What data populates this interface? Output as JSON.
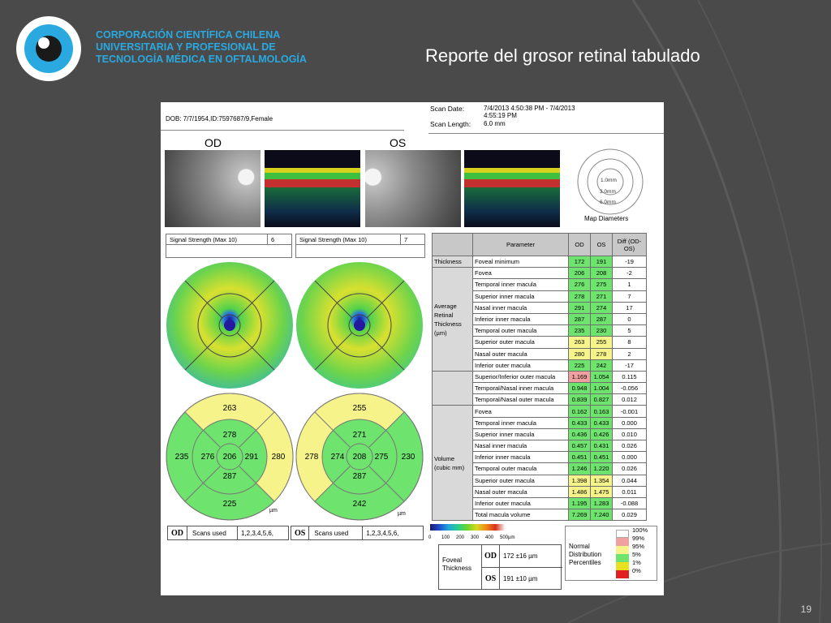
{
  "header": {
    "org_line1": "CORPORACIÓN CIENTÍFICA CHILENA",
    "org_line2": "UNIVERSITARIA Y PROFESIONAL DE",
    "org_line3": "TECNOLOGÍA MÉDICA EN OFTALMOLOGÍA",
    "title": "Reporte del grosor retinal tabulado"
  },
  "page_number": "19",
  "colors": {
    "background": "#4a4a4a",
    "logo_blue": "#29a9e0",
    "green": "#6ee36e",
    "yellow": "#f6f38a",
    "pink": "#f0a0a0"
  },
  "report": {
    "dob": "DOB: 7/7/1954,ID:7597687/9,Female",
    "scan_date_label": "Scan Date:",
    "scan_date_value": "7/4/2013 4:50:38 PM - 7/4/2013 4:55:19 PM",
    "scan_length_label": "Scan Length:",
    "scan_length_value": "6.0 mm",
    "od_label": "OD",
    "os_label": "OS",
    "map_diameters": {
      "label": "Map Diameters",
      "ring1": "1.0mm",
      "ring2": "3.0mm",
      "ring3": "6.0mm"
    },
    "signal_od": {
      "label": "Signal Strength (Max 10)",
      "value": "6"
    },
    "signal_os": {
      "label": "Signal Strength (Max 10)",
      "value": "7"
    },
    "sector_od": {
      "superior_outer": "263",
      "superior_inner": "278",
      "temporal_outer": "235",
      "temporal_inner": "276",
      "center": "206",
      "nasal_inner": "291",
      "nasal_outer": "280",
      "inferior_inner": "287",
      "inferior_outer": "225",
      "unit": "µm"
    },
    "sector_os": {
      "superior_outer": "255",
      "superior_inner": "271",
      "temporal_outer": "278",
      "temporal_inner": "274",
      "center": "208",
      "nasal_inner": "275",
      "nasal_outer": "230",
      "inferior_inner": "287",
      "inferior_outer": "242",
      "unit": "µm"
    },
    "scans_od": {
      "eye": "OD",
      "label": "Scans used",
      "value": "1,2,3,4,5,6,"
    },
    "scans_os": {
      "eye": "OS",
      "label": "Scans used",
      "value": "1,2,3,4,5,6,"
    },
    "colorbar": {
      "ticks": [
        "0",
        "100",
        "200",
        "300",
        "400",
        "500µm"
      ]
    },
    "foveal": {
      "label_line1": "Foveal",
      "label_line2": "Thickness",
      "od_eye": "OD",
      "od_value": "172 ±16 µm",
      "os_eye": "OS",
      "os_value": "191 ±10 µm"
    },
    "ndp": {
      "line1": "Normal",
      "line2": "Distribution",
      "line3": "Percentiles",
      "p100": "100%",
      "p99": "99%",
      "p95": "95%",
      "p5": "5%",
      "p1": "1%",
      "p0": "0%"
    }
  },
  "table": {
    "headers": {
      "parameter": "Parameter",
      "od": "OD",
      "os": "OS",
      "diff": "Diff (OD-OS)"
    },
    "groups": {
      "thickness": "Thickness",
      "average": "Average Retinal Thickness (µm)",
      "volume": "Volume (cubic mm)"
    },
    "rows": [
      {
        "param": "Foveal minimum",
        "od": "172",
        "os": "191",
        "diff": "-19",
        "od_c": "g",
        "os_c": "g"
      },
      {
        "param": "Fovea",
        "od": "206",
        "os": "208",
        "diff": "-2",
        "od_c": "g",
        "os_c": "g"
      },
      {
        "param": "Temporal inner macula",
        "od": "276",
        "os": "275",
        "diff": "1",
        "od_c": "g",
        "os_c": "g"
      },
      {
        "param": "Superior inner macula",
        "od": "278",
        "os": "271",
        "diff": "7",
        "od_c": "g",
        "os_c": "g"
      },
      {
        "param": "Nasal inner macula",
        "od": "291",
        "os": "274",
        "diff": "17",
        "od_c": "g",
        "os_c": "g"
      },
      {
        "param": "Inferior inner macula",
        "od": "287",
        "os": "287",
        "diff": "0",
        "od_c": "g",
        "os_c": "g"
      },
      {
        "param": "Temporal outer macula",
        "od": "235",
        "os": "230",
        "diff": "5",
        "od_c": "g",
        "os_c": "g"
      },
      {
        "param": "Superior outer macula",
        "od": "263",
        "os": "255",
        "diff": "8",
        "od_c": "y",
        "os_c": "y"
      },
      {
        "param": "Nasal outer macula",
        "od": "280",
        "os": "278",
        "diff": "2",
        "od_c": "y",
        "os_c": "y"
      },
      {
        "param": "Inferior outer macula",
        "od": "225",
        "os": "242",
        "diff": "-17",
        "od_c": "g",
        "os_c": "g"
      },
      {
        "param": "Superior/Inferior outer macula",
        "od": "1.169",
        "os": "1.054",
        "diff": "0.115",
        "od_c": "p",
        "os_c": "g"
      },
      {
        "param": "Temporal/Nasal inner macula",
        "od": "0.948",
        "os": "1.004",
        "diff": "-0.056",
        "od_c": "g",
        "os_c": "g"
      },
      {
        "param": "Temporal/Nasal outer macula",
        "od": "0.839",
        "os": "0.827",
        "diff": "0.012",
        "od_c": "g",
        "os_c": "g"
      },
      {
        "param": "Fovea",
        "od": "0.162",
        "os": "0.163",
        "diff": "-0.001",
        "od_c": "g",
        "os_c": "g"
      },
      {
        "param": "Temporal inner macula",
        "od": "0.433",
        "os": "0.433",
        "diff": "0.000",
        "od_c": "g",
        "os_c": "g"
      },
      {
        "param": "Superior inner macula",
        "od": "0.436",
        "os": "0.426",
        "diff": "0.010",
        "od_c": "g",
        "os_c": "g"
      },
      {
        "param": "Nasal inner macula",
        "od": "0.457",
        "os": "0.431",
        "diff": "0.026",
        "od_c": "g",
        "os_c": "g"
      },
      {
        "param": "Inferior inner macula",
        "od": "0.451",
        "os": "0.451",
        "diff": "0.000",
        "od_c": "g",
        "os_c": "g"
      },
      {
        "param": "Temporal outer macula",
        "od": "1.246",
        "os": "1.220",
        "diff": "0.026",
        "od_c": "g",
        "os_c": "g"
      },
      {
        "param": "Superior outer macula",
        "od": "1.398",
        "os": "1.354",
        "diff": "0.044",
        "od_c": "y",
        "os_c": "y"
      },
      {
        "param": "Nasal outer macula",
        "od": "1.486",
        "os": "1.475",
        "diff": "0.011",
        "od_c": "y",
        "os_c": "y"
      },
      {
        "param": "Inferior outer macula",
        "od": "1.195",
        "os": "1.283",
        "diff": "-0.088",
        "od_c": "g",
        "os_c": "g"
      },
      {
        "param": "Total macula volume",
        "od": "7.269",
        "os": "7.240",
        "diff": "0.029",
        "od_c": "g",
        "os_c": "g"
      }
    ]
  }
}
